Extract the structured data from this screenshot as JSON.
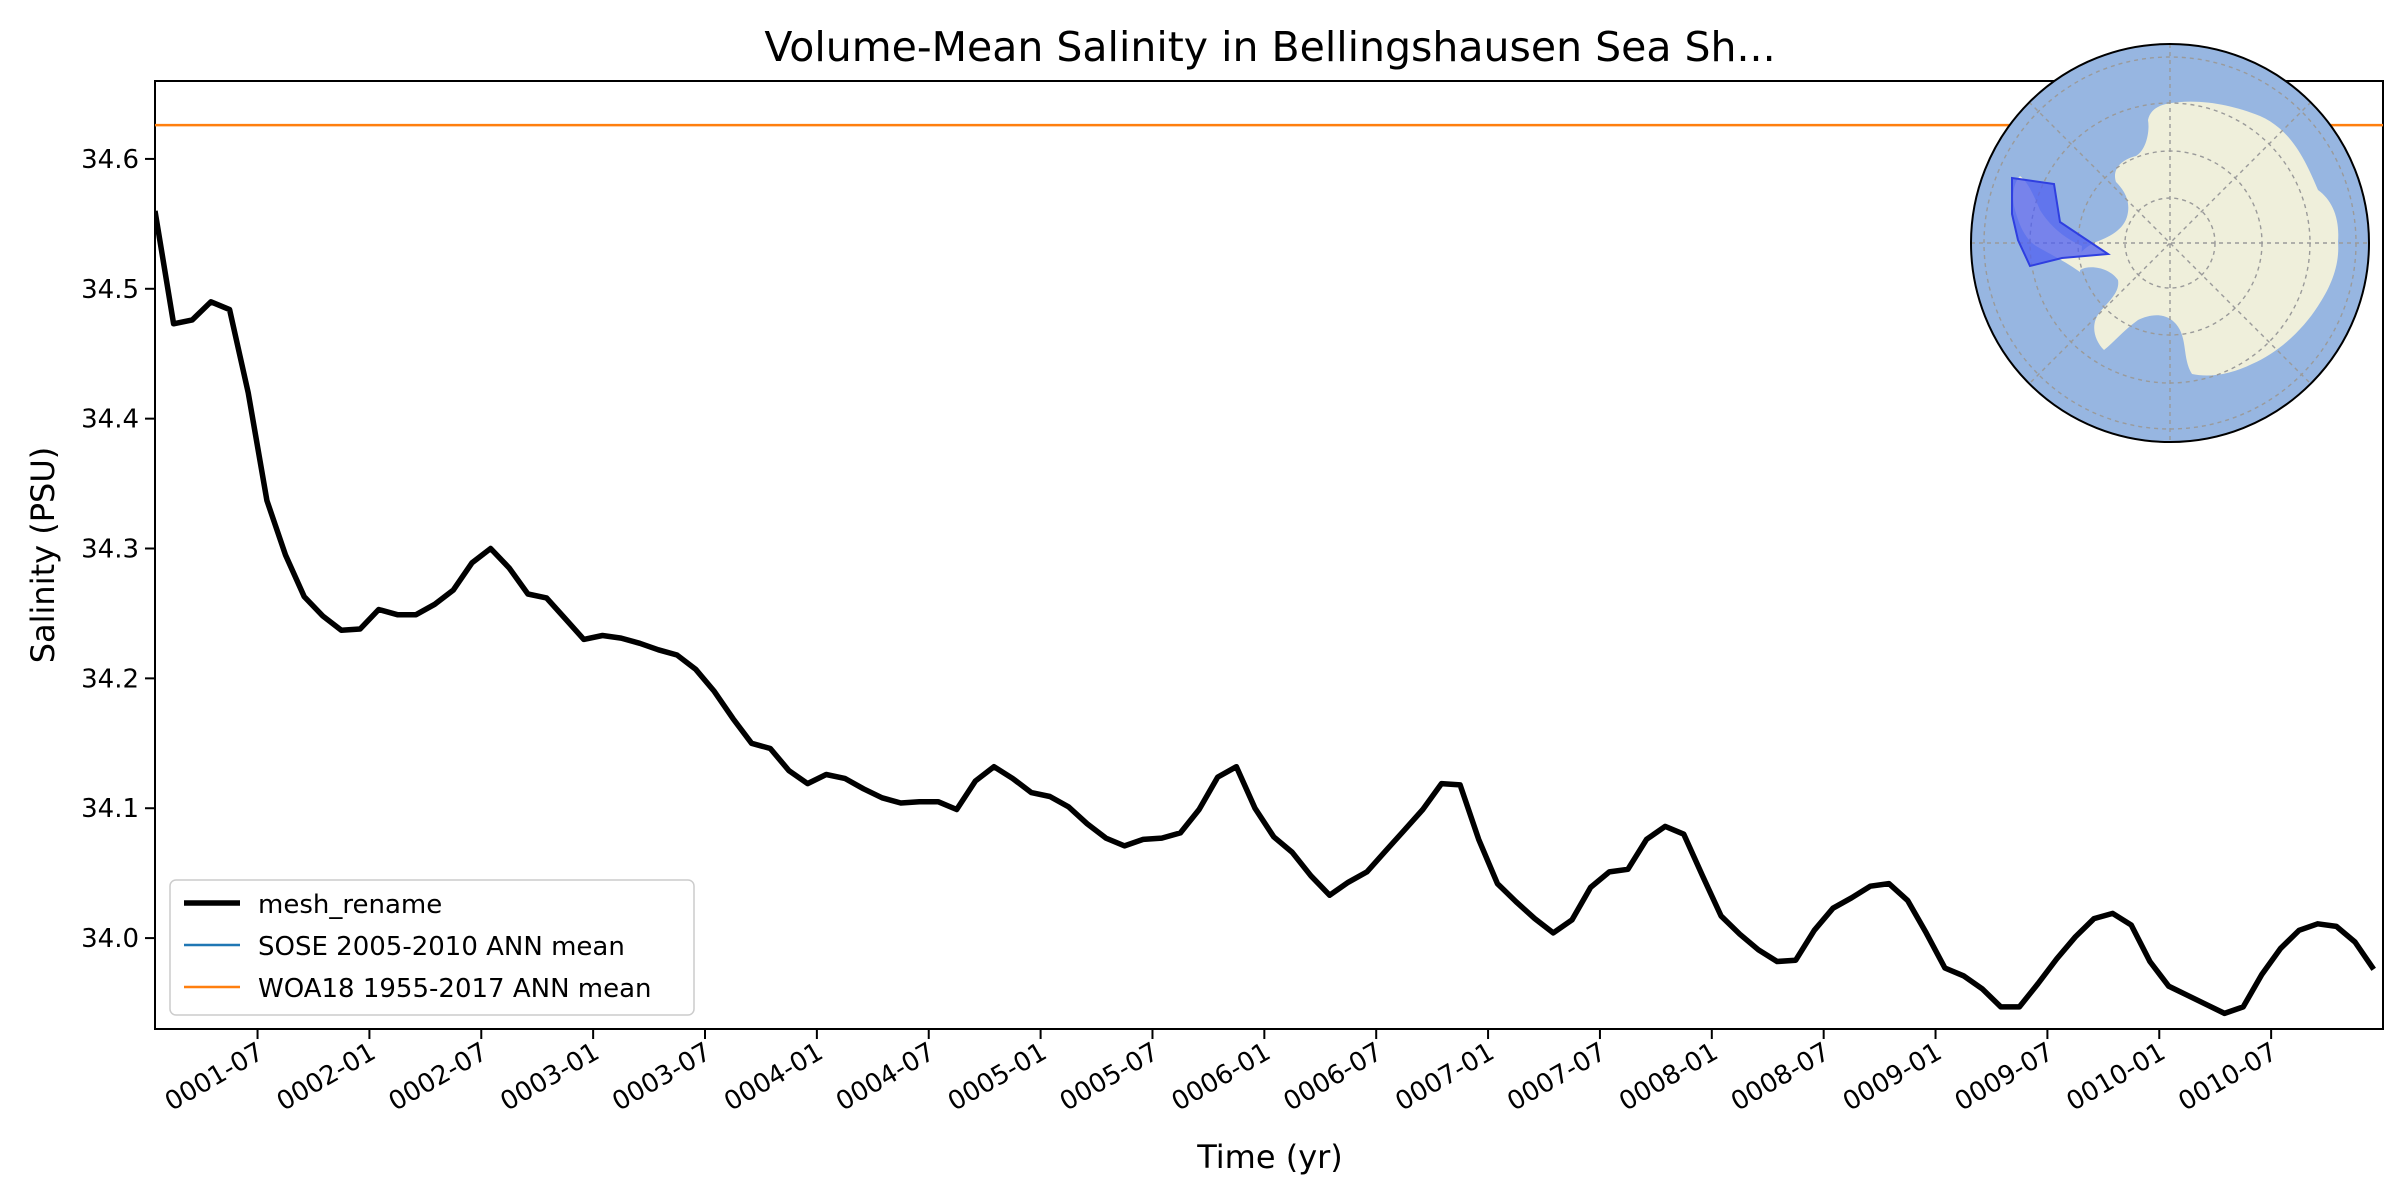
{
  "chart_data": {
    "type": "line",
    "title": "Volume-Mean Salinity in Bellingshausen Sea Sh...",
    "xlabel": "Time (yr)",
    "ylabel": "Salinity (PSU)",
    "xlim_months": [
      0,
      119.5
    ],
    "ylim": [
      33.93,
      34.66
    ],
    "y_ticks": [
      "34.0",
      "34.1",
      "34.2",
      "34.3",
      "34.4",
      "34.5",
      "34.6"
    ],
    "y_tick_values": [
      34.0,
      34.1,
      34.2,
      34.3,
      34.4,
      34.5,
      34.6
    ],
    "x_ticks": [
      "0001-07",
      "0002-01",
      "0002-07",
      "0003-01",
      "0003-07",
      "0004-01",
      "0004-07",
      "0005-01",
      "0005-07",
      "0006-01",
      "0006-07",
      "0007-01",
      "0007-07",
      "0008-01",
      "0008-07",
      "0009-01",
      "0009-07",
      "0010-01",
      "0010-07"
    ],
    "x_tick_months": [
      5.5,
      11.5,
      17.5,
      23.5,
      29.5,
      35.5,
      41.5,
      47.5,
      53.5,
      59.5,
      65.5,
      71.5,
      77.5,
      83.5,
      89.5,
      95.5,
      101.5,
      107.5,
      113.5
    ],
    "legend_position": "lower left",
    "grid": false,
    "series": [
      {
        "name": "mesh_rename",
        "color": "#000000",
        "style": "thick-line",
        "values": [
          34.56,
          34.473,
          34.476,
          34.49,
          34.484,
          34.42,
          34.337,
          34.295,
          34.263,
          34.248,
          34.237,
          34.238,
          34.253,
          34.249,
          34.249,
          34.257,
          34.268,
          34.289,
          34.3,
          34.285,
          34.265,
          34.262,
          34.246,
          34.23,
          34.233,
          34.231,
          34.227,
          34.222,
          34.218,
          34.207,
          34.19,
          34.169,
          34.15,
          34.146,
          34.129,
          34.119,
          34.126,
          34.123,
          34.115,
          34.108,
          34.104,
          34.105,
          34.105,
          34.099,
          34.121,
          34.132,
          34.123,
          34.112,
          34.109,
          34.101,
          34.088,
          34.077,
          34.071,
          34.076,
          34.077,
          34.081,
          34.099,
          34.124,
          34.132,
          34.1,
          34.078,
          34.066,
          34.048,
          34.033,
          34.043,
          34.051,
          34.067,
          34.083,
          34.099,
          34.119,
          34.118,
          34.076,
          34.042,
          34.028,
          34.015,
          34.004,
          34.014,
          34.039,
          34.051,
          34.053,
          34.076,
          34.086,
          34.08,
          34.048,
          34.017,
          34.003,
          33.991,
          33.982,
          33.983,
          34.006,
          34.023,
          34.031,
          34.04,
          34.042,
          34.029,
          34.004,
          33.977,
          33.971,
          33.961,
          33.947,
          33.947,
          33.965,
          33.984,
          34.001,
          34.015,
          34.019,
          34.01,
          33.982,
          33.963,
          33.956,
          33.949,
          33.942,
          33.947,
          33.972,
          33.992,
          34.006,
          34.011,
          34.009,
          33.997,
          33.976
        ]
      },
      {
        "name": "SOSE 2005-2010 ANN mean",
        "color": "#1f77b4",
        "style": "line",
        "values": []
      },
      {
        "name": "WOA18 1955-2017 ANN mean",
        "color": "#ff7f0e",
        "style": "line",
        "constant_value": 34.626
      }
    ],
    "inset_map": {
      "description_icon": "antarctic-polar-map-inset",
      "ocean_color": "#97b6e1",
      "land_color": "#efefdb",
      "region_color": "#4f5ff0"
    }
  }
}
